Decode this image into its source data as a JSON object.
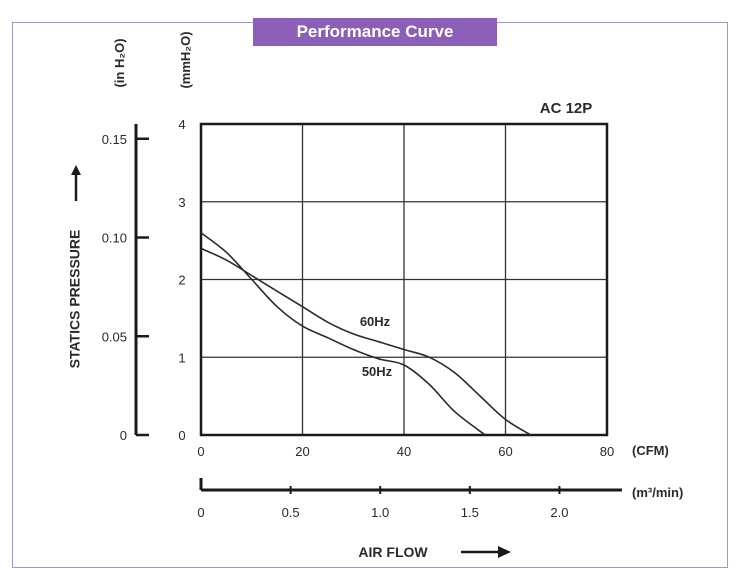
{
  "chart_data": {
    "type": "line",
    "title": "Performance Curve",
    "model": "AC 12P",
    "ylabel": "STATICS PRESSURE",
    "xlabel": "AIR FLOW",
    "y_unit_in": "(in H₂O)",
    "y_unit_mm": "(mmH₂O)",
    "x_unit_cfm": "(CFM)",
    "x_unit_m3": "(m³/min)",
    "xlim": [
      0,
      80
    ],
    "ylim": [
      0,
      4
    ],
    "x_ticks": [
      "0",
      "20",
      "40",
      "60",
      "80"
    ],
    "y_ticks_mm": [
      "0",
      "1",
      "2",
      "3",
      "4"
    ],
    "y_ticks_in": [
      "0",
      "0.05",
      "0.10",
      "0.15"
    ],
    "x_ticks_m3": [
      "0",
      "0.5",
      "1.0",
      "1.5",
      "2.0"
    ],
    "grid": true,
    "series": [
      {
        "name": "60Hz",
        "x": [
          0,
          5,
          10,
          15,
          20,
          25,
          30,
          35,
          40,
          45,
          50,
          55,
          60,
          65
        ],
        "y": [
          2.4,
          2.25,
          2.05,
          1.85,
          1.65,
          1.45,
          1.3,
          1.2,
          1.1,
          1.0,
          0.8,
          0.5,
          0.2,
          0
        ]
      },
      {
        "name": "50Hz",
        "x": [
          0,
          5,
          10,
          15,
          20,
          25,
          30,
          35,
          40,
          45,
          50,
          56
        ],
        "y": [
          2.6,
          2.35,
          2.0,
          1.65,
          1.4,
          1.25,
          1.1,
          0.98,
          0.9,
          0.65,
          0.3,
          0
        ]
      }
    ]
  }
}
